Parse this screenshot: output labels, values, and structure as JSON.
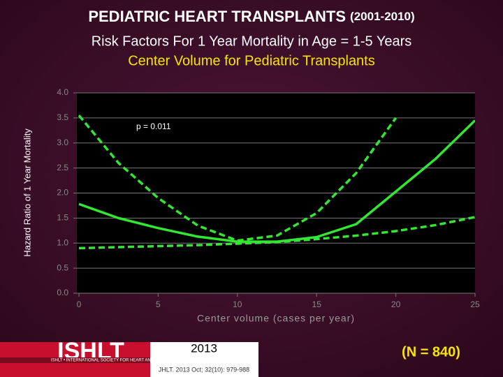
{
  "chart_data": {
    "type": "line",
    "title": "PEDIATRIC HEART TRANSPLANTS",
    "title_years": "(2001-2010)",
    "subtitle": "Risk Factors For 1 Year Mortality in Age = 1-5 Years",
    "subtitle2": "Center Volume for Pediatric Transplants",
    "annotation": "p = 0.011",
    "sample_note": "(N = 840)",
    "y_label": "Hazard Ratio of 1 Year Mortality",
    "x_label": "Center volume (cases per year)",
    "x": [
      0,
      2.5,
      5,
      7.5,
      10,
      12.5,
      15,
      17.5,
      20,
      22.5,
      25
    ],
    "series": [
      {
        "name": "Hazard ratio",
        "color": "#33e633",
        "dashed": false,
        "values": [
          1.78,
          1.5,
          1.3,
          1.13,
          1.03,
          1.03,
          1.12,
          1.38,
          2.03,
          2.68,
          3.45
        ]
      },
      {
        "name": "Upper confidence limit",
        "color": "#33e633",
        "dashed": true,
        "values": [
          3.55,
          2.6,
          1.9,
          1.35,
          1.05,
          1.15,
          1.6,
          2.4,
          3.5,
          null,
          null
        ]
      },
      {
        "name": "Lower confidence limit",
        "color": "#33e633",
        "dashed": true,
        "values": [
          0.9,
          0.92,
          0.94,
          0.96,
          0.99,
          1.02,
          1.08,
          1.15,
          1.24,
          1.36,
          1.52
        ]
      }
    ],
    "xlim": [
      0,
      25
    ],
    "xticks": [
      0,
      5,
      10,
      15,
      20,
      25
    ],
    "ylim": [
      0,
      4
    ],
    "yticks": [
      {
        "value": 0,
        "label": "0.0"
      },
      {
        "value": 0.5,
        "label": "0.5"
      },
      {
        "value": 1,
        "label": "1.0"
      },
      {
        "value": 1.5,
        "label": "1.5"
      },
      {
        "value": 2,
        "label": "2.0"
      },
      {
        "value": 2.5,
        "label": "2.5"
      },
      {
        "value": 3,
        "label": "3.0"
      },
      {
        "value": 3.5,
        "label": "3.5"
      },
      {
        "value": 4,
        "label": "4.0"
      }
    ],
    "grid": true,
    "footer": {
      "logo": "ISHLT",
      "society": "ISHLT • INTERNATIONAL SOCIETY FOR HEART AND LUNG TRANSPLANTATION",
      "year": "2013",
      "citation": "JHLT. 2013 Oct; 32(10): 979-988"
    }
  }
}
